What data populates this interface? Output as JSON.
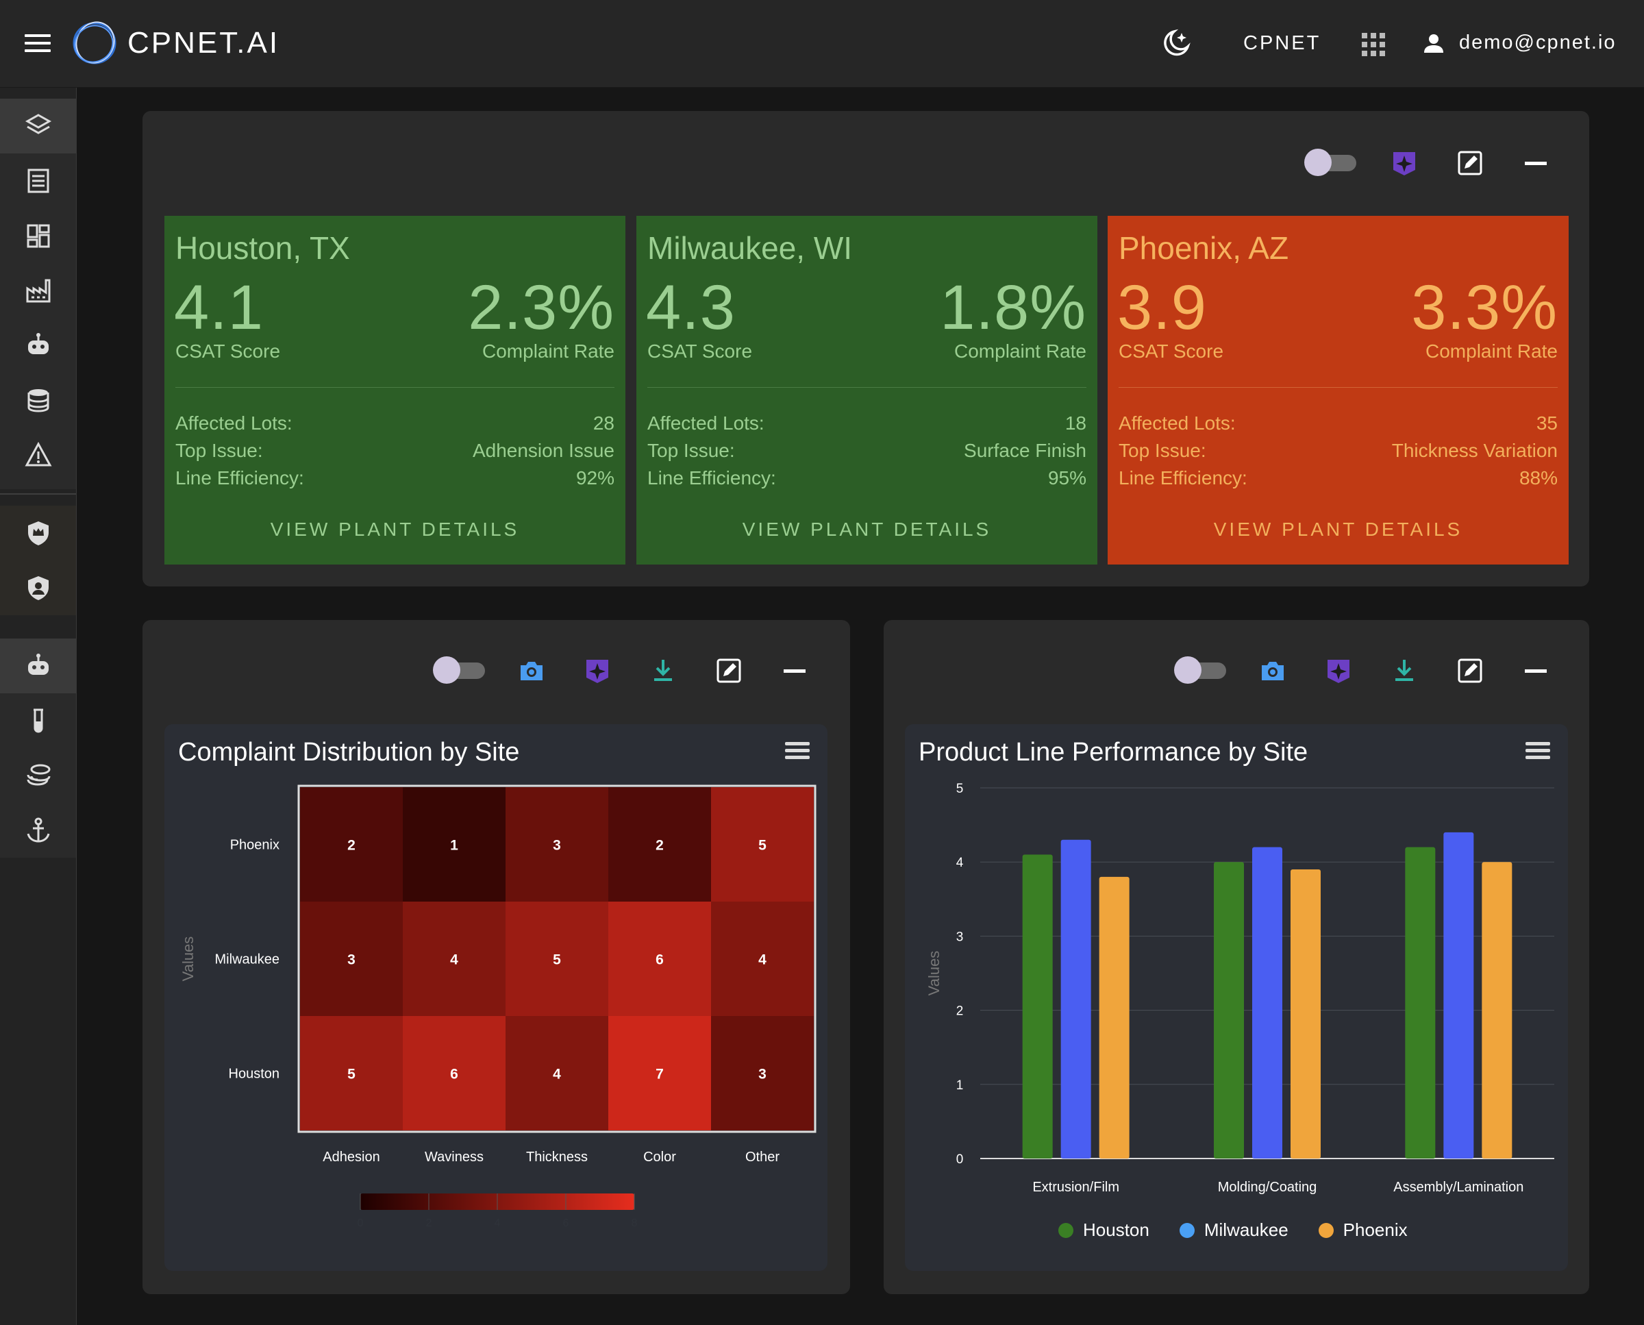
{
  "app": {
    "brand": "CPNET.AI",
    "org": "CPNET",
    "user_email": "demo@cpnet.io"
  },
  "colors": {
    "accent_purple": "#6c3fc4",
    "camera_blue": "#4a9cf0",
    "download_teal": "#2fb4a6",
    "green_card": "#2c5e26",
    "red_card": "#c03a14"
  },
  "sidebar": {
    "items": [
      "layers-icon",
      "document-icon",
      "dashboard-icon",
      "factory-icon",
      "robot-icon",
      "database-icon",
      "warning-icon",
      "shield-crown-icon",
      "shield-user-icon",
      "robot-icon",
      "test-tube-icon",
      "coins-icon",
      "anchor-icon"
    ]
  },
  "plants": [
    {
      "city": "Houston, TX",
      "csat": "4.1",
      "csat_label": "CSAT Score",
      "rate": "2.3%",
      "rate_label": "Complaint Rate",
      "lots_label": "Affected Lots:",
      "lots": "28",
      "issue_label": "Top Issue:",
      "issue": "Adhension Issue",
      "eff_label": "Line Efficiency:",
      "eff": "92%",
      "cta": "VIEW PLANT DETAILS"
    },
    {
      "city": "Milwaukee, WI",
      "csat": "4.3",
      "csat_label": "CSAT Score",
      "rate": "1.8%",
      "rate_label": "Complaint Rate",
      "lots_label": "Affected Lots:",
      "lots": "18",
      "issue_label": "Top Issue:",
      "issue": "Surface Finish",
      "eff_label": "Line Efficiency:",
      "eff": "95%",
      "cta": "VIEW PLANT DETAILS"
    },
    {
      "city": "Phoenix, AZ",
      "csat": "3.9",
      "csat_label": "CSAT Score",
      "rate": "3.3%",
      "rate_label": "Complaint Rate",
      "lots_label": "Affected Lots:",
      "lots": "35",
      "issue_label": "Top Issue:",
      "issue": "Thickness Variation",
      "eff_label": "Line Efficiency:",
      "eff": "88%",
      "cta": "VIEW PLANT DETAILS"
    }
  ],
  "chart_data": [
    {
      "type": "heatmap",
      "title": "Complaint Distribution by Site",
      "ylabel": "Values",
      "rows": [
        "Phoenix",
        "Milwaukee",
        "Houston"
      ],
      "columns": [
        "Adhesion",
        "Waviness",
        "Thickness",
        "Color",
        "Other"
      ],
      "values": [
        [
          2,
          1,
          3,
          2,
          5
        ],
        [
          3,
          4,
          5,
          6,
          4
        ],
        [
          5,
          6,
          4,
          7,
          3
        ]
      ],
      "color_range": [
        0,
        8
      ],
      "color_ticks": [
        "0",
        "2",
        "4",
        "6",
        "8"
      ]
    },
    {
      "type": "bar",
      "title": "Product Line Performance by Site",
      "ylabel": "Values",
      "categories": [
        "Extrusion/Film",
        "Molding/Coating",
        "Assembly/Lamination"
      ],
      "ylim": [
        0,
        5
      ],
      "yticks": [
        "0",
        "1",
        "2",
        "3",
        "4",
        "5"
      ],
      "series": [
        {
          "name": "Houston",
          "color": "#3a7f24",
          "values": [
            4.1,
            4.0,
            4.2
          ]
        },
        {
          "name": "Milwaukee",
          "color": "#4a5ef2",
          "values": [
            4.3,
            4.2,
            4.4
          ]
        },
        {
          "name": "Phoenix",
          "color": "#f0a53c",
          "values": [
            3.8,
            3.9,
            4.0
          ]
        }
      ],
      "legend": "bottom"
    }
  ]
}
